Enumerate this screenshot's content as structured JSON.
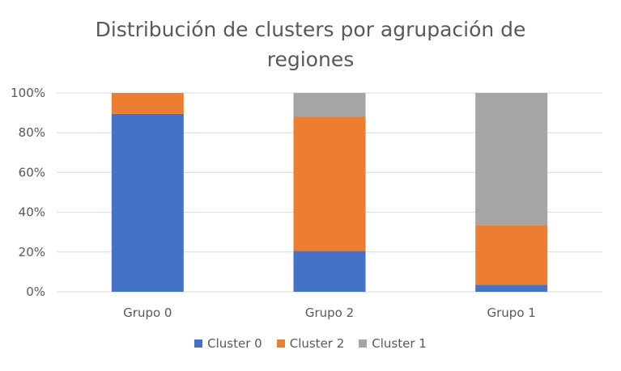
{
  "chart_data": {
    "type": "bar",
    "stacked": "percent",
    "title_lines": [
      "Distribución de clusters por agrupación de",
      "regiones"
    ],
    "categories": [
      "Grupo 0",
      "Grupo 2",
      "Grupo 1"
    ],
    "series": [
      {
        "name": "Cluster 0",
        "color": "#4472C4",
        "values": [
          89.5,
          20.5,
          3.5
        ]
      },
      {
        "name": "Cluster 2",
        "color": "#ED7D31",
        "values": [
          10.5,
          67.5,
          30
        ]
      },
      {
        "name": "Cluster 1",
        "color": "#A5A5A5",
        "values": [
          0,
          12,
          66.5
        ]
      }
    ],
    "yticks": [
      "0%",
      "20%",
      "40%",
      "60%",
      "80%",
      "100%"
    ],
    "ylim": [
      0,
      100
    ],
    "grid": true,
    "legend_position": "bottom"
  }
}
